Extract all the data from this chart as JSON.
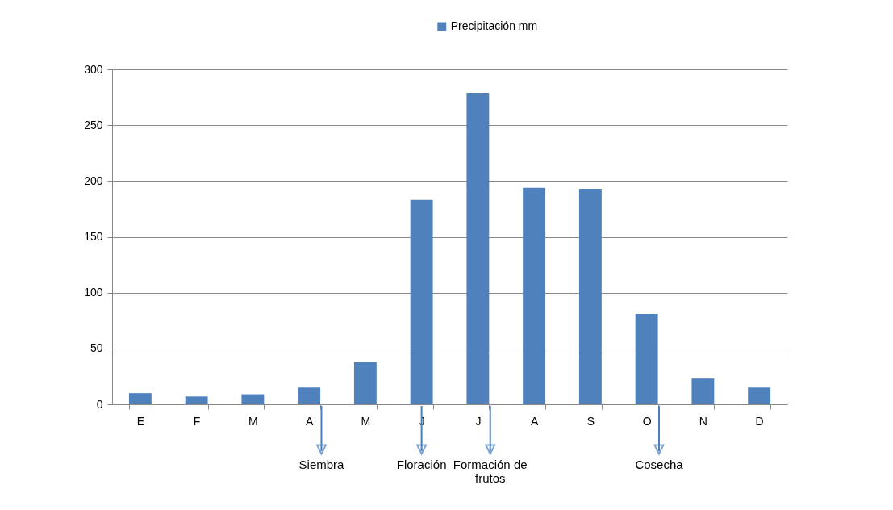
{
  "chart_data": {
    "type": "bar",
    "categories": [
      "E",
      "F",
      "M",
      "A",
      "M",
      "J",
      "J",
      "A",
      "S",
      "O",
      "N",
      "D"
    ],
    "series": [
      {
        "name": "Precipitación mm",
        "color": "#4f81bd",
        "values": [
          10,
          7,
          9,
          15,
          38,
          183,
          279,
          194,
          193,
          81,
          23,
          15
        ]
      }
    ],
    "ylim": [
      0,
      300
    ],
    "yticks": [
      0,
      50,
      100,
      150,
      200,
      250,
      300
    ],
    "grid": "y",
    "legend": "top",
    "annotations": [
      "Siembra",
      "Floración",
      "Formación de frutos",
      "Cosecha"
    ]
  }
}
